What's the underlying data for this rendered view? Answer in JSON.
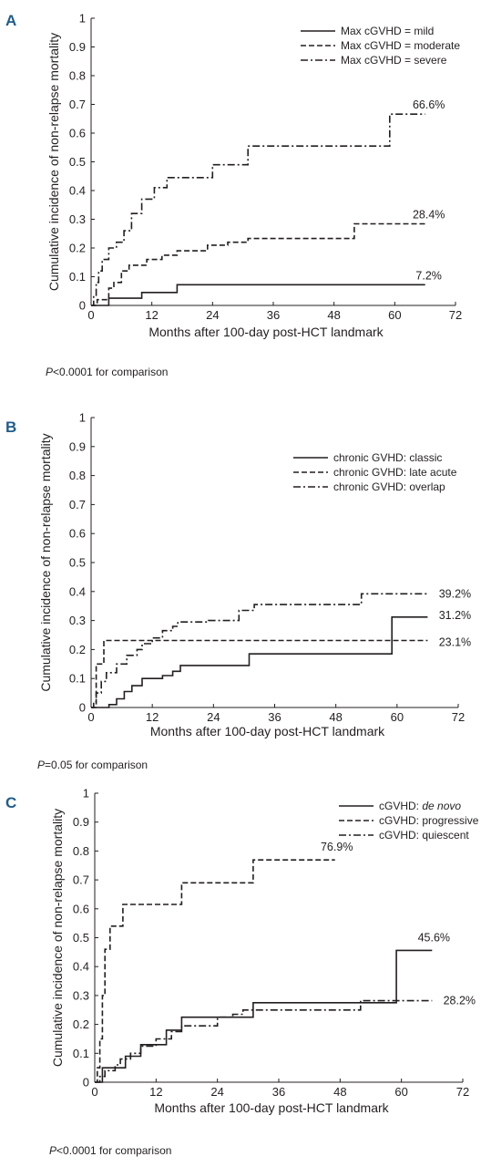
{
  "chart_data": [
    {
      "panel_label": "A",
      "type": "line",
      "step": true,
      "xlabel": "Months after 100-day post-HCT landmark",
      "ylabel": "Cumulative incidence of non-relapse mortality",
      "xlim": [
        0,
        72
      ],
      "ylim": [
        0,
        1
      ],
      "xticks": [
        "0",
        "12",
        "24",
        "36",
        "48",
        "60",
        "72"
      ],
      "yticks": [
        "0",
        "0.1",
        "0.2",
        "0.3",
        "0.4",
        "0.5",
        "0.6",
        "0.7",
        "0.8",
        "0.9",
        "1"
      ],
      "legend_position": "top-right",
      "series": [
        {
          "name": "Max cGVHD = mild",
          "style": "solid",
          "end_label": "7.2%",
          "points": [
            [
              0,
              0
            ],
            [
              3.5,
              0
            ],
            [
              3.5,
              0.025
            ],
            [
              10,
              0.025
            ],
            [
              10,
              0.045
            ],
            [
              17,
              0.045
            ],
            [
              17,
              0.072
            ],
            [
              66,
              0.072
            ]
          ]
        },
        {
          "name": "Max cGVHD = moderate",
          "style": "dashed",
          "end_label": "28.4%",
          "points": [
            [
              0,
              0
            ],
            [
              1.2,
              0
            ],
            [
              1.2,
              0.02
            ],
            [
              3.5,
              0.02
            ],
            [
              3.5,
              0.06
            ],
            [
              4.5,
              0.06
            ],
            [
              4.5,
              0.08
            ],
            [
              6,
              0.08
            ],
            [
              6,
              0.12
            ],
            [
              7.5,
              0.12
            ],
            [
              7.5,
              0.14
            ],
            [
              11,
              0.14
            ],
            [
              11,
              0.16
            ],
            [
              14,
              0.16
            ],
            [
              14,
              0.175
            ],
            [
              17,
              0.175
            ],
            [
              17,
              0.19
            ],
            [
              23,
              0.19
            ],
            [
              23,
              0.21
            ],
            [
              27,
              0.21
            ],
            [
              27,
              0.22
            ],
            [
              31,
              0.22
            ],
            [
              31,
              0.233
            ],
            [
              52,
              0.233
            ],
            [
              52,
              0.284
            ],
            [
              66,
              0.284
            ]
          ]
        },
        {
          "name": "Max cGVHD = severe",
          "style": "dashdot",
          "end_label": "66.6%",
          "points": [
            [
              0,
              0
            ],
            [
              0.5,
              0
            ],
            [
              0.5,
              0.03
            ],
            [
              1,
              0.03
            ],
            [
              1,
              0.08
            ],
            [
              1.5,
              0.08
            ],
            [
              1.5,
              0.12
            ],
            [
              2.2,
              0.12
            ],
            [
              2.2,
              0.16
            ],
            [
              3.5,
              0.16
            ],
            [
              3.5,
              0.2
            ],
            [
              5,
              0.2
            ],
            [
              5,
              0.22
            ],
            [
              6.5,
              0.22
            ],
            [
              6.5,
              0.26
            ],
            [
              8,
              0.26
            ],
            [
              8,
              0.32
            ],
            [
              10,
              0.32
            ],
            [
              10,
              0.37
            ],
            [
              12.5,
              0.37
            ],
            [
              12.5,
              0.41
            ],
            [
              15,
              0.41
            ],
            [
              15,
              0.445
            ],
            [
              24,
              0.445
            ],
            [
              24,
              0.49
            ],
            [
              31,
              0.49
            ],
            [
              31,
              0.555
            ],
            [
              59,
              0.555
            ],
            [
              59,
              0.666
            ],
            [
              66,
              0.666
            ]
          ]
        }
      ],
      "annotation": {
        "italic": "P",
        "text": "<0.0001 for comparison"
      }
    },
    {
      "panel_label": "B",
      "type": "line",
      "step": true,
      "xlabel": "Months after 100-day post-HCT landmark",
      "ylabel": "Cumulative incidence of non-relapse mortality",
      "xlim": [
        0,
        72
      ],
      "ylim": [
        0,
        1
      ],
      "xticks": [
        "0",
        "12",
        "24",
        "36",
        "48",
        "60",
        "72"
      ],
      "yticks": [
        "0",
        "0.1",
        "0.2",
        "0.3",
        "0.4",
        "0.5",
        "0.6",
        "0.7",
        "0.8",
        "0.9",
        "1"
      ],
      "legend_position": "top-right",
      "series": [
        {
          "name": "chronic GVHD: classic",
          "style": "solid",
          "end_label": "31.2%",
          "points": [
            [
              0,
              0
            ],
            [
              3.5,
              0
            ],
            [
              3.5,
              0.01
            ],
            [
              5,
              0.01
            ],
            [
              5,
              0.03
            ],
            [
              6.5,
              0.03
            ],
            [
              6.5,
              0.055
            ],
            [
              8,
              0.055
            ],
            [
              8,
              0.075
            ],
            [
              10,
              0.075
            ],
            [
              10,
              0.1
            ],
            [
              14,
              0.1
            ],
            [
              14,
              0.11
            ],
            [
              16,
              0.11
            ],
            [
              16,
              0.125
            ],
            [
              17.5,
              0.125
            ],
            [
              17.5,
              0.145
            ],
            [
              31,
              0.145
            ],
            [
              31,
              0.185
            ],
            [
              59,
              0.185
            ],
            [
              59,
              0.312
            ],
            [
              66,
              0.312
            ]
          ]
        },
        {
          "name": "chronic GVHD: late acute",
          "style": "dashed",
          "end_label": "23.1%",
          "points": [
            [
              0,
              0
            ],
            [
              1,
              0
            ],
            [
              1,
              0.15
            ],
            [
              2.5,
              0.15
            ],
            [
              2.5,
              0.231
            ],
            [
              66,
              0.231
            ]
          ]
        },
        {
          "name": "chronic GVHD: overlap",
          "style": "dashdot",
          "end_label": "39.2%",
          "points": [
            [
              0,
              0
            ],
            [
              0.5,
              0
            ],
            [
              0.5,
              0.02
            ],
            [
              1,
              0.02
            ],
            [
              1,
              0.05
            ],
            [
              2,
              0.05
            ],
            [
              2,
              0.09
            ],
            [
              3,
              0.09
            ],
            [
              3,
              0.12
            ],
            [
              5,
              0.12
            ],
            [
              5,
              0.15
            ],
            [
              7,
              0.15
            ],
            [
              7,
              0.18
            ],
            [
              9,
              0.18
            ],
            [
              9,
              0.2
            ],
            [
              10,
              0.2
            ],
            [
              10,
              0.22
            ],
            [
              12,
              0.22
            ],
            [
              12,
              0.24
            ],
            [
              14,
              0.24
            ],
            [
              14,
              0.265
            ],
            [
              16,
              0.265
            ],
            [
              16,
              0.28
            ],
            [
              17,
              0.28
            ],
            [
              17,
              0.295
            ],
            [
              23,
              0.295
            ],
            [
              23,
              0.3
            ],
            [
              29,
              0.3
            ],
            [
              29,
              0.335
            ],
            [
              32,
              0.335
            ],
            [
              32,
              0.355
            ],
            [
              53,
              0.355
            ],
            [
              53,
              0.392
            ],
            [
              66,
              0.392
            ]
          ]
        }
      ],
      "annotation": {
        "italic": "P",
        "text": "=0.05 for comparison"
      }
    },
    {
      "panel_label": "C",
      "type": "line",
      "step": true,
      "xlabel": "Months after 100-day post-HCT landmark",
      "ylabel": "Cumulative incidence of non-relapse mortality",
      "xlim": [
        0,
        72
      ],
      "ylim": [
        0,
        1
      ],
      "xticks": [
        "0",
        "12",
        "24",
        "36",
        "48",
        "60",
        "72"
      ],
      "yticks": [
        "0",
        "0.1",
        "0.2",
        "0.3",
        "0.4",
        "0.5",
        "0.6",
        "0.7",
        "0.8",
        "0.9",
        "1"
      ],
      "legend_position": "top-right",
      "series": [
        {
          "name_prefix": "cGVHD: ",
          "name_italic": "de novo",
          "style": "solid",
          "end_label": "45.6%",
          "points": [
            [
              0,
              0
            ],
            [
              1.5,
              0
            ],
            [
              1.5,
              0.05
            ],
            [
              6,
              0.05
            ],
            [
              6,
              0.09
            ],
            [
              9,
              0.09
            ],
            [
              9,
              0.13
            ],
            [
              14,
              0.13
            ],
            [
              14,
              0.18
            ],
            [
              17,
              0.18
            ],
            [
              17,
              0.225
            ],
            [
              31,
              0.225
            ],
            [
              31,
              0.275
            ],
            [
              59,
              0.275
            ],
            [
              59,
              0.456
            ],
            [
              66,
              0.456
            ]
          ]
        },
        {
          "name": "cGVHD: progressive",
          "style": "dashed",
          "end_label": "76.9%",
          "points": [
            [
              0,
              0
            ],
            [
              0.5,
              0
            ],
            [
              0.5,
              0.05
            ],
            [
              1,
              0.05
            ],
            [
              1,
              0.15
            ],
            [
              1.5,
              0.15
            ],
            [
              1.5,
              0.3
            ],
            [
              2,
              0.3
            ],
            [
              2,
              0.46
            ],
            [
              3,
              0.46
            ],
            [
              3,
              0.54
            ],
            [
              5.5,
              0.54
            ],
            [
              5.5,
              0.615
            ],
            [
              17,
              0.615
            ],
            [
              17,
              0.69
            ],
            [
              31,
              0.69
            ],
            [
              31,
              0.769
            ],
            [
              47,
              0.769
            ]
          ]
        },
        {
          "name": "cGVHD: quiescent",
          "style": "dashdot",
          "end_label": "28.2%",
          "points": [
            [
              0,
              0
            ],
            [
              1,
              0
            ],
            [
              1,
              0.02
            ],
            [
              2,
              0.02
            ],
            [
              2,
              0.04
            ],
            [
              4,
              0.04
            ],
            [
              4,
              0.06
            ],
            [
              5,
              0.06
            ],
            [
              5,
              0.08
            ],
            [
              7,
              0.08
            ],
            [
              7,
              0.1
            ],
            [
              9,
              0.1
            ],
            [
              9,
              0.125
            ],
            [
              12,
              0.125
            ],
            [
              12,
              0.15
            ],
            [
              15,
              0.15
            ],
            [
              15,
              0.175
            ],
            [
              17,
              0.175
            ],
            [
              17,
              0.195
            ],
            [
              24,
              0.195
            ],
            [
              24,
              0.225
            ],
            [
              27,
              0.225
            ],
            [
              27,
              0.235
            ],
            [
              29,
              0.235
            ],
            [
              29,
              0.25
            ],
            [
              52,
              0.25
            ],
            [
              52,
              0.282
            ],
            [
              66,
              0.282
            ]
          ]
        }
      ],
      "annotation": {
        "italic": "P",
        "text": "<0.0001 for comparison"
      }
    }
  ]
}
